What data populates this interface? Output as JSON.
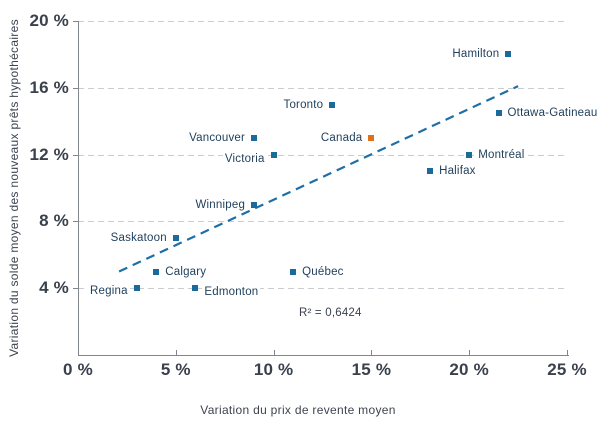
{
  "chart_data": {
    "type": "scatter",
    "title": "",
    "xlabel": "Variation du prix de revente moyen",
    "ylabel": "Variation du solde moyen des nouveaux prêts hypothécaires",
    "xlim": [
      0,
      25
    ],
    "ylim": [
      0,
      20
    ],
    "x_ticks": [
      0,
      5,
      10,
      15,
      20,
      25
    ],
    "y_ticks": [
      4,
      8,
      12,
      16,
      20
    ],
    "tick_suffix": " %",
    "grid": "horizontal-dashed",
    "legend": "none",
    "annotation": {
      "text": "R² = 0,6424",
      "x": 12.9,
      "y": 2.5
    },
    "trendline": {
      "x1": 2.1,
      "y1": 5.0,
      "x2": 22.5,
      "y2": 16.1,
      "style": "dashed"
    },
    "points": [
      {
        "name": "Regina",
        "x": 3,
        "y": 4,
        "label_side": "left",
        "dy": 3,
        "highlight": false
      },
      {
        "name": "Calgary",
        "x": 4,
        "y": 5,
        "label_side": "right",
        "dy": 0,
        "highlight": false
      },
      {
        "name": "Saskatoon",
        "x": 5,
        "y": 7,
        "label_side": "left",
        "dy": 0,
        "highlight": false
      },
      {
        "name": "Edmonton",
        "x": 6,
        "y": 4,
        "label_side": "right",
        "dy": 4,
        "highlight": false
      },
      {
        "name": "Winnipeg",
        "x": 9,
        "y": 9,
        "label_side": "left",
        "dy": 0,
        "highlight": false
      },
      {
        "name": "Vancouver",
        "x": 9,
        "y": 13,
        "label_side": "left",
        "dy": 0,
        "highlight": false
      },
      {
        "name": "Victoria",
        "x": 10,
        "y": 12,
        "label_side": "left",
        "dy": 4,
        "highlight": false
      },
      {
        "name": "Québec",
        "x": 11,
        "y": 5,
        "label_side": "right",
        "dy": 0,
        "highlight": false
      },
      {
        "name": "Toronto",
        "x": 13,
        "y": 15,
        "label_side": "left",
        "dy": 0,
        "highlight": false
      },
      {
        "name": "Canada",
        "x": 15,
        "y": 13,
        "label_side": "left",
        "dy": 0,
        "highlight": true
      },
      {
        "name": "Halifax",
        "x": 18,
        "y": 11,
        "label_side": "right",
        "dy": 0,
        "highlight": false
      },
      {
        "name": "Montréal",
        "x": 20,
        "y": 12,
        "label_side": "right",
        "dy": 0,
        "highlight": false
      },
      {
        "name": "Ottawa-Gatineau",
        "x": 21.5,
        "y": 14.5,
        "label_side": "right",
        "dy": 0,
        "highlight": false
      },
      {
        "name": "Hamilton",
        "x": 22,
        "y": 18,
        "label_side": "left",
        "dy": 0,
        "highlight": false
      }
    ],
    "colors": {
      "point": "#1b6a9b",
      "highlight_point": "#e0701e",
      "trendline": "#1d6fa5",
      "grid": "#c9cdd1",
      "axis": "#82878d",
      "tick_label": "#3a414d",
      "point_label": "#1e3e5a",
      "background": "#ffffff"
    }
  }
}
